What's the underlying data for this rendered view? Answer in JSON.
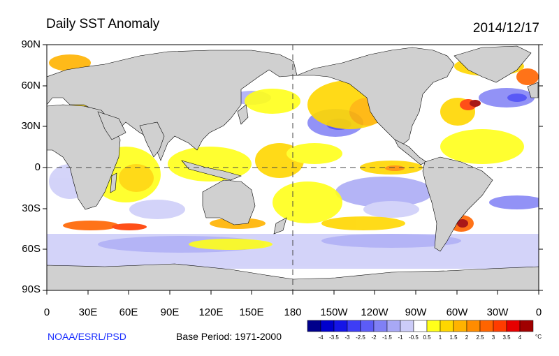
{
  "title": "Daily SST Anomaly",
  "date": "2014/12/17",
  "credit": "NOAA/ESRL/PSD",
  "base_period": "Base Period: 1971-2000",
  "lat_labels": [
    "90N",
    "60N",
    "30N",
    "0",
    "30S",
    "60S",
    "90S"
  ],
  "lon_labels": [
    "0",
    "30E",
    "60E",
    "90E",
    "120E",
    "150E",
    "180",
    "150W",
    "120W",
    "90W",
    "60W",
    "30W",
    "0"
  ],
  "colorbar": {
    "unit": "°C",
    "ticks": [
      "-4",
      "-3.5",
      "-3",
      "-2.5",
      "-2",
      "-1.5",
      "-1",
      "-0.5",
      "0.5",
      "1",
      "1.5",
      "2",
      "2.5",
      "3",
      "3.5",
      "4"
    ],
    "colors": [
      "#00008b",
      "#0000cd",
      "#1515e6",
      "#3d3df5",
      "#5c5cf7",
      "#8080f5",
      "#a8a8f5",
      "#ccccf8",
      "#ffffff",
      "#ffff1a",
      "#ffd700",
      "#ffb300",
      "#ff8c00",
      "#ff6400",
      "#ff3c00",
      "#e60000",
      "#a00000"
    ]
  },
  "colors": {
    "land": "#d0d0d0",
    "ocean": "#ffffff",
    "coast": "#000000"
  }
}
